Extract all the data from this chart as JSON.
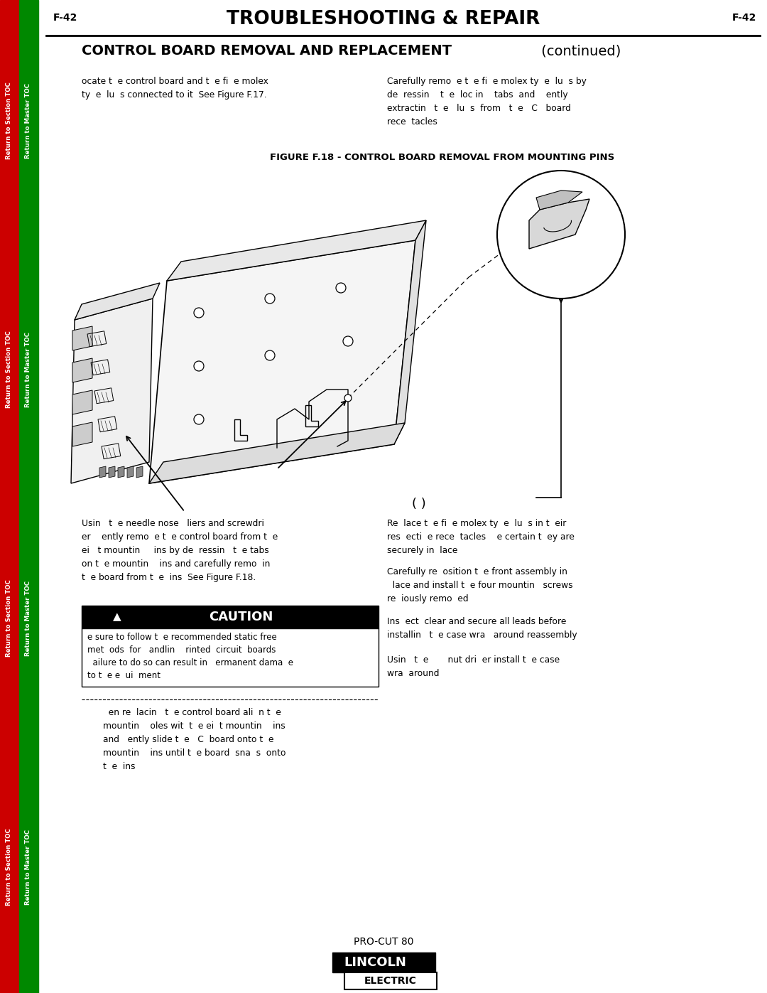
{
  "page_num": "F-42",
  "title": "TROUBLESHOOTING & REPAIR",
  "section_title_bold": "CONTROL BOARD REMOVAL AND REPLACEMENT",
  "section_title_normal": " (continued)",
  "figure_label": "FIGURE F.18 - CONTROL BOARD REMOVAL FROM MOUNTING PINS",
  "footer_model": "PRO-CUT 80",
  "bg_color": "#ffffff",
  "sidebar_red": "#cc0000",
  "sidebar_green": "#008800",
  "text_col1_top": "ocate t  e control board and t  e fi  e molex\nty  e  lu  s connected to it  See Figure F.17.",
  "text_col2_top": "Carefully remo  e t  e fi  e molex ty  e  lu  s by\nde  ressin    t  e  loc in    tabs  and    ently\nextractin   t  e   lu  s  from   t  e   C   board\nrece  tacles",
  "text_col1_bottom": "Usin   t  e needle nose   liers and screwdri\ner    ently remo  e t  e control board from t  e\nei   t mountin     ins by de  ressin   t  e tabs\non t  e mountin    ins and carefully remo  in\nt  e board from t  e  ins  See Figure F.18.",
  "text_col2_b1": "Re  lace t  e fi  e molex ty  e  lu  s in t  eir\nres  ecti  e rece  tacles    e certain t  ey are\nsecurely in  lace",
  "text_col2_b2": "Carefully re  osition t  e front assembly in\n  lace and install t  e four mountin   screws\nre  iously remo  ed",
  "text_col2_b3": "Ins  ect  clear and secure all leads before\ninstallin   t  e case wra   around reassembly",
  "text_col2_b4": "Usin   t  e       nut dri  er install t  e case\nwra  around",
  "text_col1_realign": "  en re  lacin   t  e control board ali  n t  e\nmountin    oles wit  t  e ei  t mountin    ins\nand   ently slide t  e   C  board onto t  e\nmountin    ins until t  e board  sna  s  onto\nt  e  ins",
  "caution_text": "CAUTION",
  "caution_body": "e sure to follow t  e recommended static free\nmet  ods  for   andlin    rinted  circuit  boards\n  ailure to do so can result in   ermanent dama  e\nto t  e e  ui  ment"
}
